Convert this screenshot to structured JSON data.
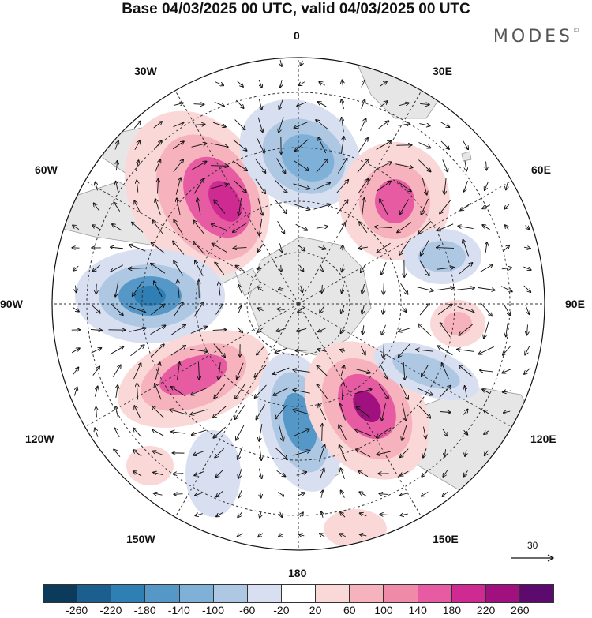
{
  "title": "Base 04/03/2025 00 UTC, valid 04/03/2025 00 UTC",
  "brand": "MODES",
  "longitude_labels": {
    "lon_0": "0",
    "lon_30e": "30E",
    "lon_60e": "60E",
    "lon_90e": "90E",
    "lon_120e": "120E",
    "lon_150e": "150E",
    "lon_180": "180",
    "lon_150w": "150W",
    "lon_120w": "120W",
    "lon_90w": "90W",
    "lon_60w": "60W",
    "lon_30w": "30W"
  },
  "reference_vector": {
    "label": "30"
  },
  "colorbar": {
    "colors": [
      "#0b3a5a",
      "#1c5f8f",
      "#2f7fb5",
      "#5598c8",
      "#7fb0d8",
      "#aec8e4",
      "#d8dff0",
      "#ffffff",
      "#fbd8d8",
      "#f6b3bd",
      "#f08aa9",
      "#e65ba1",
      "#cf2a92",
      "#a0107f",
      "#5c0a6e"
    ],
    "ticks": [
      "-260",
      "-220",
      "-180",
      "-140",
      "-100",
      "-60",
      "-20",
      "20",
      "60",
      "100",
      "140",
      "180",
      "220",
      "260"
    ]
  },
  "colors": {
    "land": "#e6e6e6",
    "coast": "#9a9a9a",
    "grid": "#333333",
    "vector": "#111111"
  }
}
